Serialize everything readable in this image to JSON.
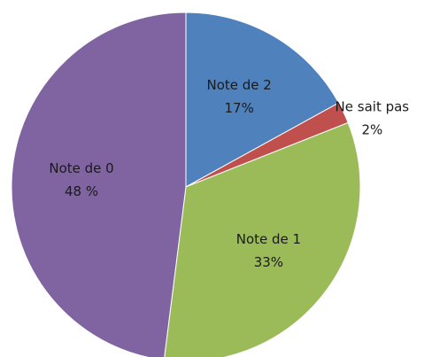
{
  "chart_data": {
    "type": "pie",
    "categories": [
      "Note de 2",
      "Ne sait pas",
      "Note de 1",
      "Note de 0"
    ],
    "values": [
      17,
      2,
      33,
      48
    ],
    "value_labels": [
      "17%",
      "2%",
      "33%",
      "48 %"
    ],
    "colors": [
      "#4f81bd",
      "#c0504d",
      "#9bbb59",
      "#8064a2"
    ]
  }
}
